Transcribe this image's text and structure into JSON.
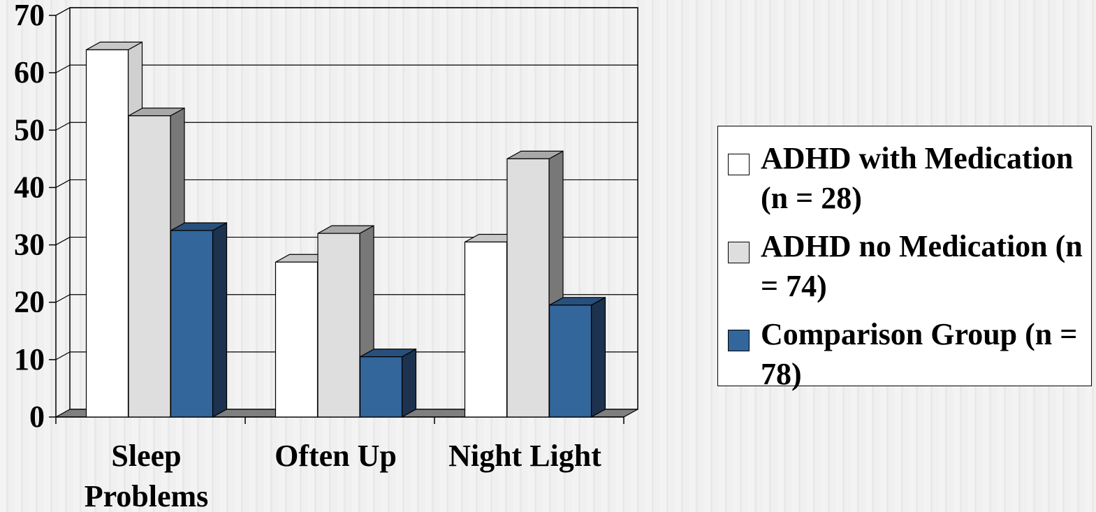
{
  "chart_data": {
    "type": "bar",
    "categories": [
      "Sleep Problems",
      "Often Up",
      "Night Light"
    ],
    "series": [
      {
        "name": "ADHD with Medication (n = 28)",
        "values": [
          64,
          27,
          30.5
        ],
        "color": "#ffffff",
        "side_color": "#d0d0d0",
        "top_color": "#c8c8c8"
      },
      {
        "name": "ADHD no Medication (n = 74)",
        "values": [
          52.5,
          32,
          45
        ],
        "color": "#dedede",
        "side_color": "#787878",
        "top_color": "#a8a8a8"
      },
      {
        "name": "Comparison Group (n = 78)",
        "values": [
          32.5,
          10.5,
          19.5
        ],
        "color": "#33669a",
        "side_color": "#1c324e",
        "top_color": "#28507c"
      }
    ],
    "yticks": [
      "0",
      "10",
      "20",
      "30",
      "40",
      "50",
      "60",
      "70"
    ],
    "ylim": [
      0,
      70
    ],
    "grid": true,
    "legend_position": "right",
    "title": "",
    "xlabel": "",
    "ylabel": ""
  },
  "legend": {
    "items": [
      {
        "label": "ADHD with Medication (n = 28)"
      },
      {
        "label": "ADHD no Medication (n = 74)"
      },
      {
        "label": "Comparison Group (n = 78)"
      }
    ]
  }
}
